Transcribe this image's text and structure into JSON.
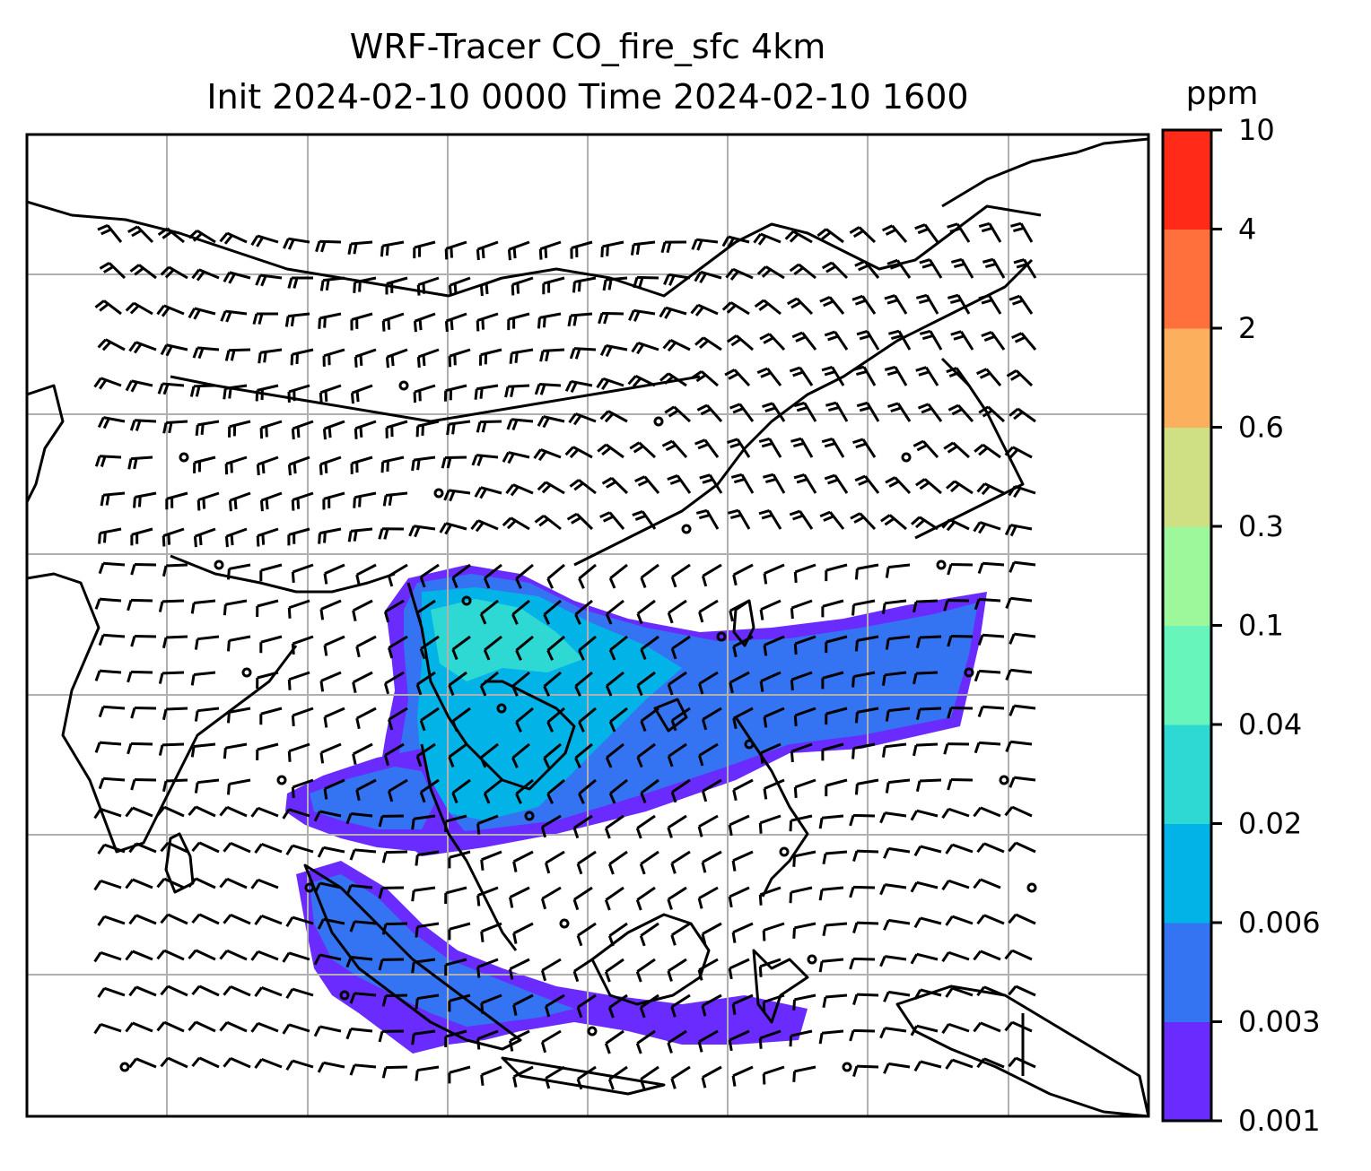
{
  "title": {
    "line1": "WRF-Tracer CO_fire_sfc 4km",
    "line2": "Init 2024-02-10 0000 Time 2024-02-10 1600"
  },
  "colorbar": {
    "unit": "ppm",
    "levels": [
      "0.001",
      "0.003",
      "0.006",
      "0.02",
      "0.04",
      "0.1",
      "0.3",
      "0.6",
      "2",
      "4",
      "10"
    ],
    "colors": [
      "#6a2bff",
      "#3474f2",
      "#02b3e8",
      "#2ed9d4",
      "#67f5bc",
      "#9cf89b",
      "#cfe084",
      "#fcb05e",
      "#ff703d",
      "#ff2b18"
    ]
  },
  "colors": {
    "coastline": "#000000",
    "gridline": "#b0b0b0",
    "barb": "#000000"
  }
}
